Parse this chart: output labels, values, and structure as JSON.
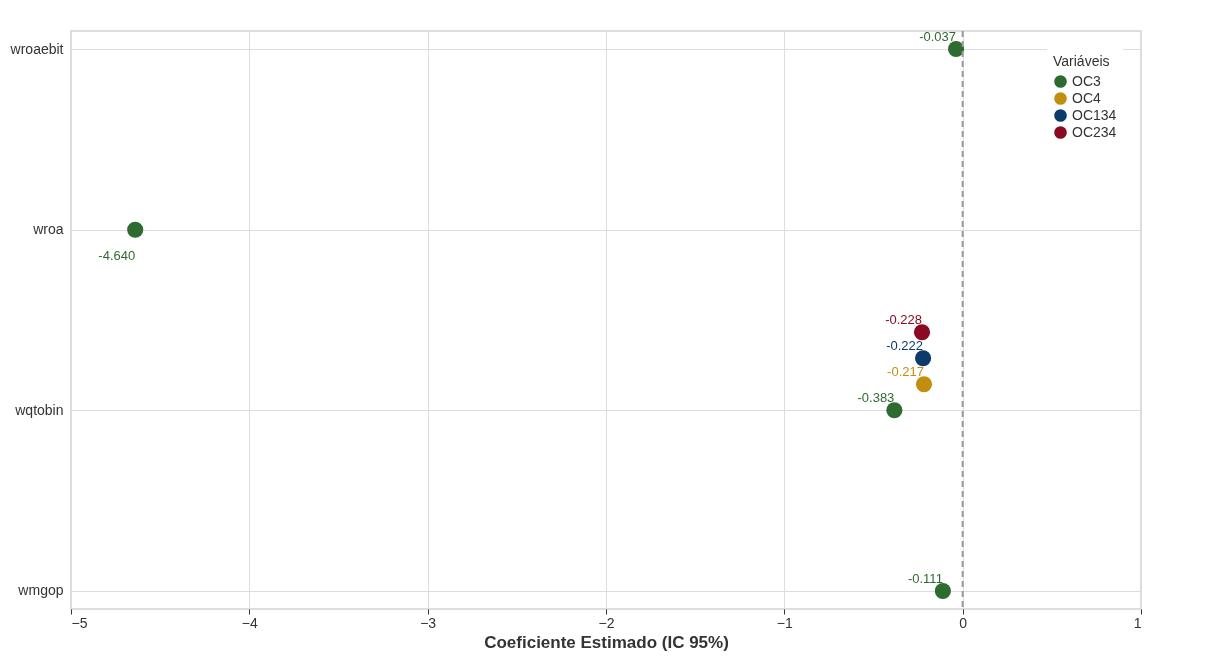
{
  "chart_data": {
    "type": "scatter",
    "orientation": "horizontal",
    "xlabel": "Coeficiente Estimado (IC 95%)",
    "legend_title": "Variáveis",
    "legend": "top right",
    "grid": true,
    "marker": "circle",
    "categories": [
      "wroaebit",
      "wroa",
      "wqtobin",
      "wmgop"
    ],
    "xlim": [
      -5,
      1
    ],
    "xticks": [
      {
        "value": -5,
        "label": "−5"
      },
      {
        "value": -4,
        "label": "−4"
      },
      {
        "value": -3,
        "label": "−3"
      },
      {
        "value": -2,
        "label": "−2"
      },
      {
        "value": -1,
        "label": "−1"
      },
      0,
      1
    ],
    "series": [
      {
        "name": "OC3",
        "color": "#2e6b30",
        "values": [
          -0.037,
          -4.64,
          -0.383,
          -0.111
        ],
        "value_labels": [
          "-0.037",
          "-4.640",
          "-0.383",
          "-0.111"
        ]
      },
      {
        "name": "OC4",
        "color": "#c28e0e",
        "values": [
          null,
          null,
          -0.217,
          null
        ],
        "value_labels": [
          null,
          null,
          "-0.217",
          null
        ]
      },
      {
        "name": "OC134",
        "color": "#0b3a6b",
        "values": [
          null,
          null,
          -0.222,
          null
        ],
        "value_labels": [
          null,
          null,
          "-0.222",
          null
        ]
      },
      {
        "name": "OC234",
        "color": "#8b0a22",
        "values": [
          null,
          null,
          -0.228,
          null
        ],
        "value_labels": [
          null,
          null,
          "-0.228",
          null
        ]
      }
    ],
    "ref_lines": [
      {
        "axis": "x",
        "value": 0,
        "label": null,
        "color": "#999999",
        "line_style": "dashed"
      }
    ]
  }
}
